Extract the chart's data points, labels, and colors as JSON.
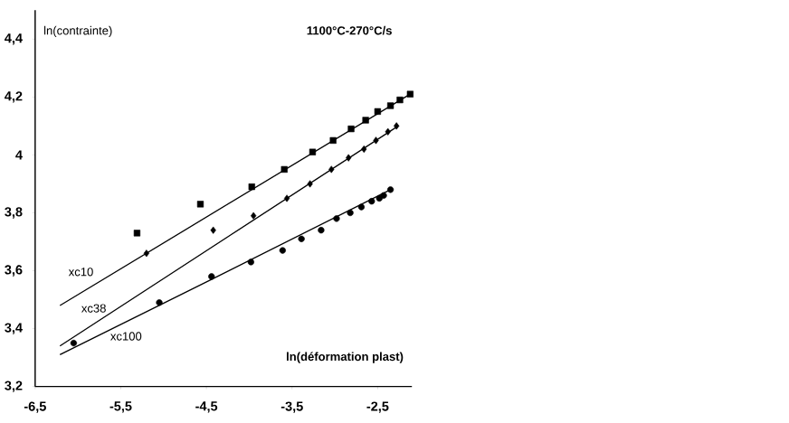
{
  "chart_data": {
    "type": "scatter",
    "title": "1100°C-270°C/s",
    "xlabel": "ln(déformation plast)",
    "ylabel": "ln(contrainte)",
    "xlim": [
      -6.5,
      -2.1
    ],
    "ylim": [
      3.2,
      4.5
    ],
    "xticks": [
      {
        "value": -6.5,
        "label": "-6,5"
      },
      {
        "value": -5.5,
        "label": "-5,5"
      },
      {
        "value": -4.5,
        "label": "-4,5"
      },
      {
        "value": -3.5,
        "label": "-3,5"
      },
      {
        "value": -2.5,
        "label": "-2,5"
      }
    ],
    "yticks": [
      {
        "value": 3.2,
        "label": "3,2"
      },
      {
        "value": 3.4,
        "label": "3,4"
      },
      {
        "value": 3.6,
        "label": "3,6"
      },
      {
        "value": 3.8,
        "label": "3,8"
      },
      4,
      {
        "value": 4.2,
        "label": "4,2"
      },
      {
        "value": 4.4,
        "label": "4,4"
      }
    ],
    "grid": false,
    "series": [
      {
        "marker": "square",
        "color": "#000000",
        "x": [
          -5.31,
          -4.57,
          -3.97,
          -3.59,
          -3.26,
          -3.02,
          -2.81,
          -2.64,
          -2.5,
          -2.35,
          -2.24,
          -2.12
        ],
        "values": [
          3.73,
          3.83,
          3.89,
          3.95,
          4.01,
          4.05,
          4.09,
          4.12,
          4.15,
          4.17,
          4.19,
          4.21
        ]
      },
      {
        "marker": "diamond",
        "color": "#000000",
        "x": [
          -5.2,
          -4.42,
          -3.95,
          -3.56,
          -3.29,
          -3.04,
          -2.84,
          -2.66,
          -2.52,
          -2.38,
          -2.28
        ],
        "values": [
          3.66,
          3.74,
          3.79,
          3.85,
          3.9,
          3.95,
          3.99,
          4.02,
          4.05,
          4.08,
          4.1
        ]
      },
      {
        "marker": "circle",
        "color": "#000000",
        "x": [
          -6.05,
          -5.05,
          -4.44,
          -3.98,
          -3.61,
          -3.39,
          -3.16,
          -2.98,
          -2.82,
          -2.69,
          -2.57,
          -2.48,
          -2.43,
          -2.35
        ],
        "values": [
          3.35,
          3.49,
          3.58,
          3.63,
          3.67,
          3.71,
          3.74,
          3.78,
          3.8,
          3.82,
          3.84,
          3.85,
          3.86,
          3.88
        ]
      },
      {
        "type": "line",
        "name": "xc10",
        "marker": "none",
        "color": "#000000",
        "x": [
          -6.21,
          -2.12
        ],
        "values": [
          3.48,
          4.21
        ]
      },
      {
        "type": "line",
        "name": "xc38",
        "marker": "none",
        "color": "#000000",
        "x": [
          -6.21,
          -2.26
        ],
        "values": [
          3.34,
          4.1
        ]
      },
      {
        "type": "line",
        "name": "xc100",
        "marker": "none",
        "color": "#000000",
        "x": [
          -6.21,
          -4.44,
          -2.35
        ],
        "values": [
          3.31,
          3.57,
          3.88
        ]
      }
    ]
  }
}
